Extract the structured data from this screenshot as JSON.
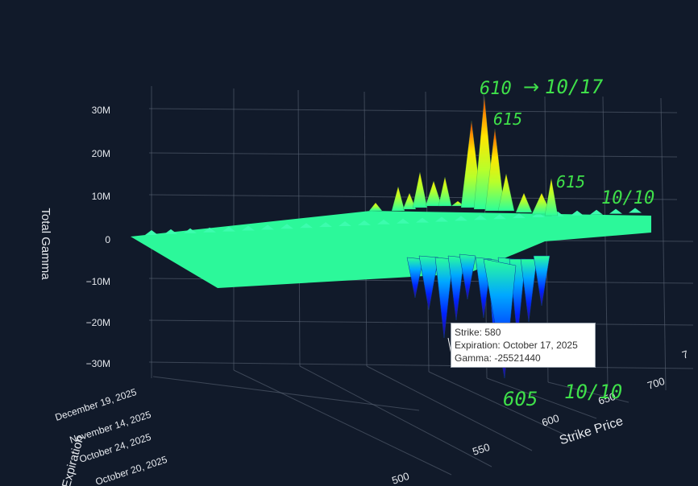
{
  "chart_data": {
    "type": "surface3d",
    "zlabel": "Total Gamma",
    "xlabel": "Strike Price",
    "ylabel": "Expiration",
    "z_ticks": [
      {
        "value": 30000000,
        "label": "30M"
      },
      {
        "value": 20000000,
        "label": "20M"
      },
      {
        "value": 10000000,
        "label": "10M"
      },
      {
        "value": 0,
        "label": "0"
      },
      {
        "value": -10000000,
        "label": "−10M"
      },
      {
        "value": -20000000,
        "label": "−20M"
      },
      {
        "value": -30000000,
        "label": "−30M"
      }
    ],
    "x_ticks": [
      "500",
      "550",
      "600",
      "650",
      "700",
      "7"
    ],
    "y_ticks": [
      "December 19, 2025",
      "November 14, 2025",
      "October 24, 2025",
      "October 20, 2025"
    ],
    "grid": true,
    "colorscale": [
      "#2a0a8a",
      "#0022ff",
      "#00a8ff",
      "#2bff9a",
      "#b8ff2a",
      "#ffe600",
      "#ff8a00",
      "#e02a00"
    ],
    "flat_color": "#2cf89a",
    "peaks": [
      {
        "strike": 610,
        "expiration": "October 17, 2025",
        "gamma": 32000000
      },
      {
        "strike": 615,
        "expiration": "October 17, 2025",
        "gamma": 24000000
      },
      {
        "strike": 615,
        "expiration": "October 10, 2025",
        "gamma": 12000000
      },
      {
        "strike": 580,
        "expiration": "October 17, 2025",
        "gamma": -25521440
      },
      {
        "strike": 605,
        "expiration": "October 10, 2025",
        "gamma": -30000000
      }
    ],
    "hover": {
      "strike_label": "Strike: 580",
      "expiration_label": "Expiration: October 17, 2025",
      "gamma_label": "Gamma: -25521440"
    }
  },
  "annotations": {
    "a610": "610",
    "arrow": "→",
    "d1017": "10/17",
    "a615_top": "615",
    "a615_right": "615",
    "d1010_right": "10/10",
    "a605": "605",
    "d1010_bottom": "10/10"
  },
  "colors": {
    "background": "#111a2a",
    "grid": "#5a6474",
    "axis_text": "#e6e9ee",
    "handwriting": "#3fe04a"
  }
}
